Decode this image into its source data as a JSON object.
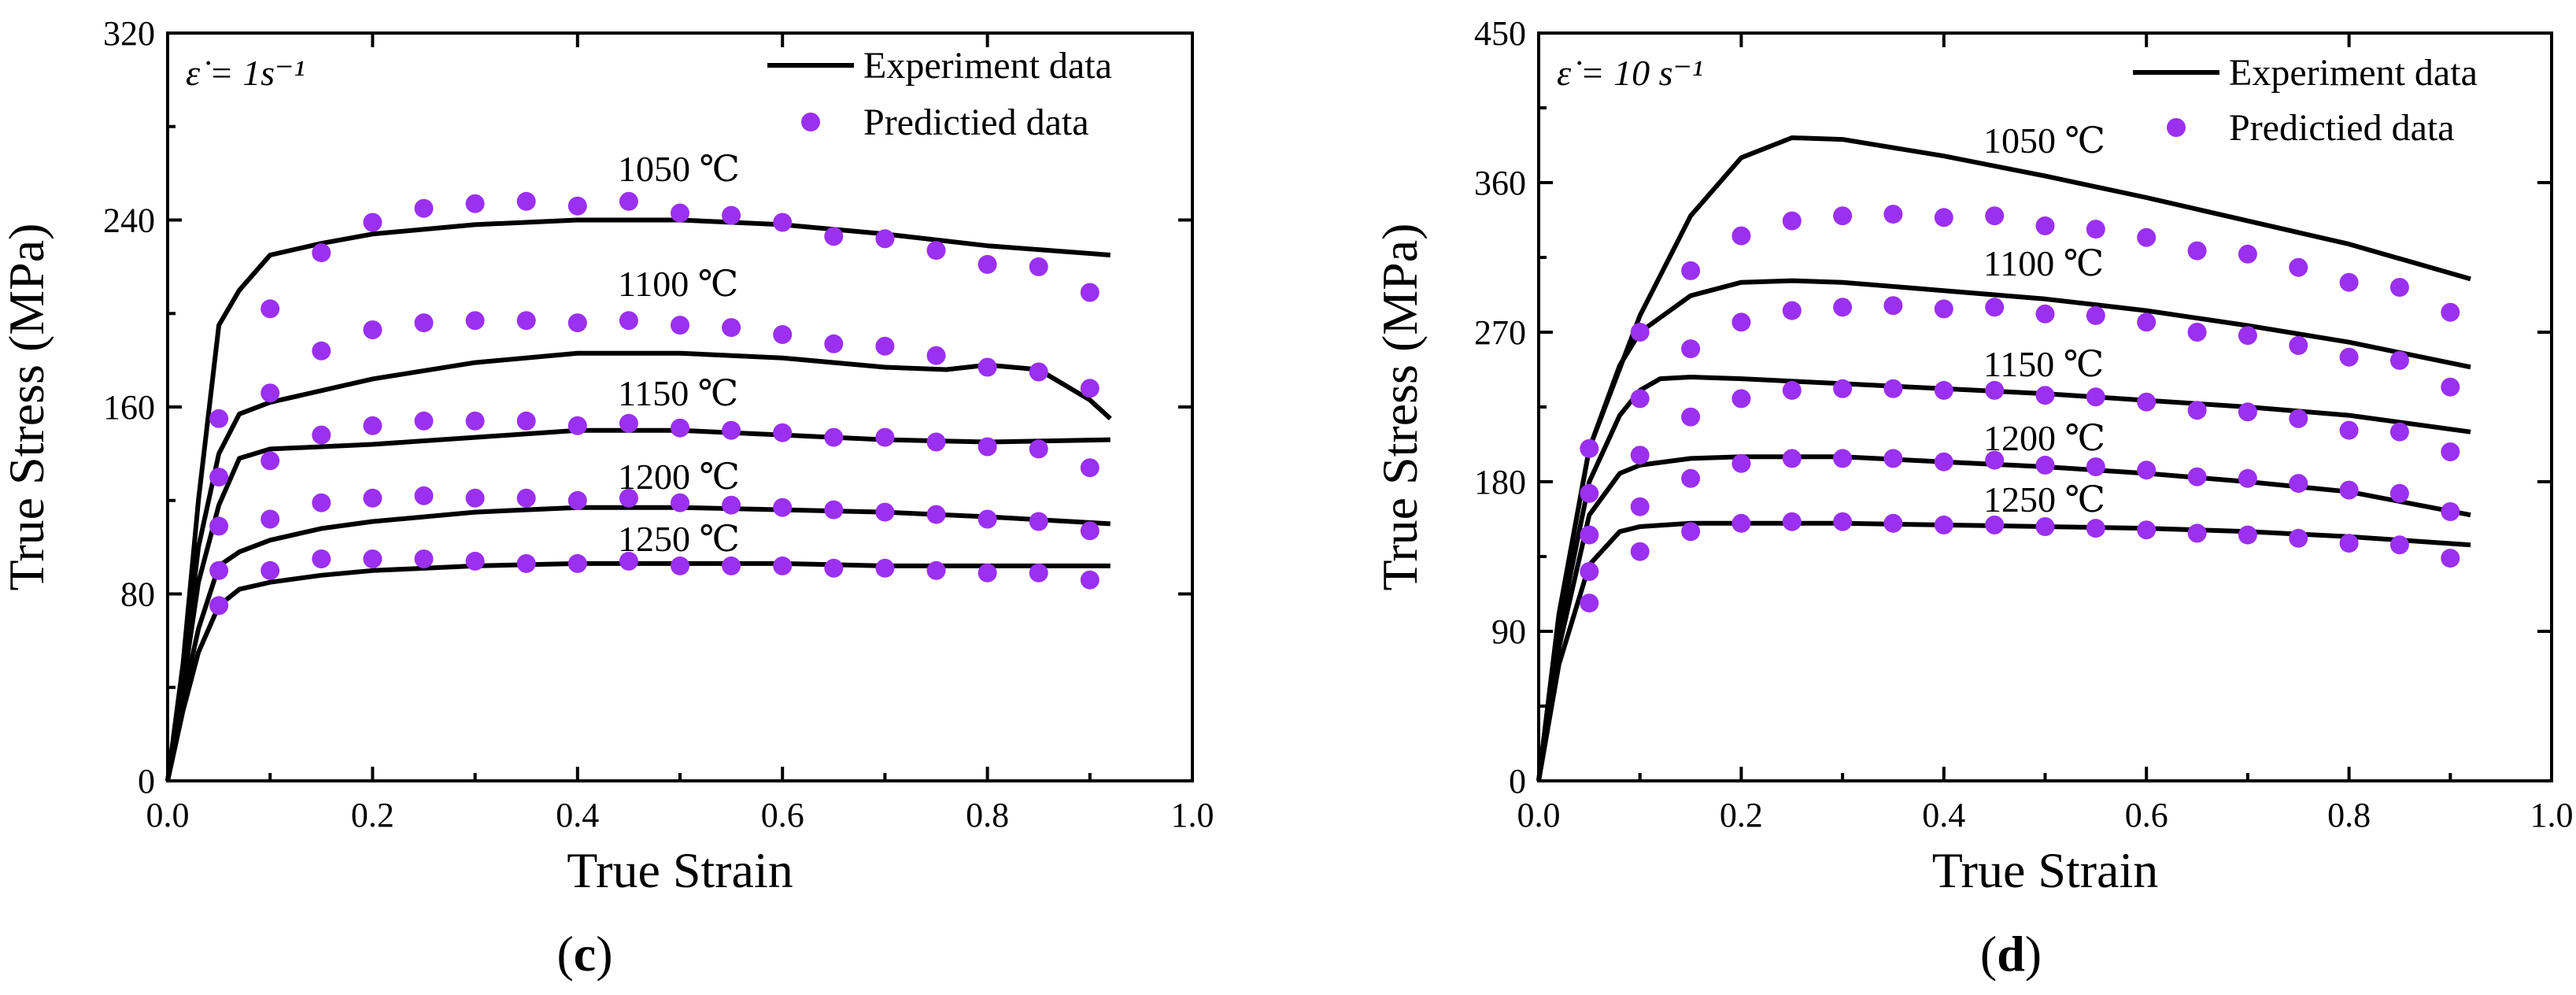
{
  "chart_data": [
    {
      "type": "line",
      "panel_label": "(c)",
      "panel_letter": "c",
      "rate_label": "ε̇ = 1s⁻¹",
      "xlabel": "True Strain",
      "ylabel": "True Stress (MPa)",
      "xlim": [
        0,
        1.0
      ],
      "ylim": [
        0,
        320
      ],
      "xticks": [
        "0.0",
        "0.2",
        "0.4",
        "0.6",
        "0.8",
        "1.0"
      ],
      "yticks": [
        "0",
        "80",
        "160",
        "240",
        "320"
      ],
      "legend": {
        "position": "top-right",
        "line_label": "Experiment data",
        "marker_label": "Predictied data"
      },
      "colors": {
        "experiment": "#000000",
        "predicted": "#9b30f0"
      },
      "series": [
        {
          "name": "1050 ℃",
          "experiment": {
            "x": [
              0,
              0.015,
              0.03,
              0.05,
              0.07,
              0.1,
              0.15,
              0.2,
              0.3,
              0.4,
              0.5,
              0.6,
              0.7,
              0.8,
              0.92
            ],
            "y": [
              0,
              50,
              120,
              195,
              210,
              225,
              230,
              234,
              238,
              240,
              240,
              238,
              234,
              229,
              225
            ]
          },
          "predicted": {
            "x": [
              0.05,
              0.1,
              0.15,
              0.2,
              0.25,
              0.3,
              0.35,
              0.4,
              0.45,
              0.5,
              0.55,
              0.6,
              0.65,
              0.7,
              0.75,
              0.8,
              0.85,
              0.9
            ],
            "y": [
              155,
              202,
              226,
              239,
              245,
              247,
              248,
              246,
              248,
              243,
              242,
              239,
              233,
              232,
              227,
              221,
              220,
              209
            ]
          }
        },
        {
          "name": "1100 ℃",
          "experiment": {
            "x": [
              0,
              0.015,
              0.03,
              0.05,
              0.07,
              0.1,
              0.2,
              0.3,
              0.4,
              0.5,
              0.6,
              0.7,
              0.76,
              0.8,
              0.85,
              0.9,
              0.92
            ],
            "y": [
              0,
              45,
              100,
              140,
              157,
              162,
              172,
              179,
              183,
              183,
              181,
              177,
              176,
              178,
              176,
              163,
              155
            ]
          },
          "predicted": {
            "x": [
              0.05,
              0.1,
              0.15,
              0.2,
              0.25,
              0.3,
              0.35,
              0.4,
              0.45,
              0.5,
              0.55,
              0.6,
              0.65,
              0.7,
              0.75,
              0.8,
              0.85,
              0.9
            ],
            "y": [
              130,
              166,
              184,
              193,
              196,
              197,
              197,
              196,
              197,
              195,
              194,
              191,
              187,
              186,
              182,
              177,
              175,
              168
            ]
          }
        },
        {
          "name": "1150 ℃",
          "experiment": {
            "x": [
              0,
              0.015,
              0.03,
              0.05,
              0.07,
              0.1,
              0.15,
              0.2,
              0.3,
              0.4,
              0.5,
              0.6,
              0.7,
              0.8,
              0.92
            ],
            "y": [
              0,
              40,
              85,
              118,
              138,
              142,
              143,
              144,
              147,
              150,
              150,
              148,
              146,
              145,
              146
            ]
          },
          "predicted": {
            "x": [
              0.05,
              0.1,
              0.15,
              0.2,
              0.25,
              0.3,
              0.35,
              0.4,
              0.45,
              0.5,
              0.55,
              0.6,
              0.65,
              0.7,
              0.75,
              0.8,
              0.85,
              0.9
            ],
            "y": [
              109,
              137,
              148,
              152,
              154,
              154,
              154,
              152,
              153,
              151,
              150,
              149,
              147,
              147,
              145,
              143,
              142,
              134
            ]
          }
        },
        {
          "name": "1200 ℃",
          "experiment": {
            "x": [
              0,
              0.015,
              0.03,
              0.05,
              0.07,
              0.1,
              0.15,
              0.2,
              0.3,
              0.4,
              0.5,
              0.6,
              0.7,
              0.8,
              0.92
            ],
            "y": [
              0,
              35,
              65,
              92,
              98,
              103,
              108,
              111,
              115,
              117,
              117,
              116,
              115,
              113,
              110
            ]
          },
          "predicted": {
            "x": [
              0.05,
              0.1,
              0.15,
              0.2,
              0.25,
              0.3,
              0.35,
              0.4,
              0.45,
              0.5,
              0.55,
              0.6,
              0.65,
              0.7,
              0.75,
              0.8,
              0.85,
              0.9
            ],
            "y": [
              90,
              112,
              119,
              121,
              122,
              121,
              121,
              120,
              121,
              119,
              118,
              117,
              116,
              115,
              114,
              112,
              111,
              107
            ]
          }
        },
        {
          "name": "1250 ℃",
          "experiment": {
            "x": [
              0,
              0.015,
              0.03,
              0.05,
              0.07,
              0.1,
              0.15,
              0.2,
              0.3,
              0.4,
              0.5,
              0.6,
              0.7,
              0.8,
              0.92
            ],
            "y": [
              0,
              30,
              55,
              75,
              82,
              85,
              88,
              90,
              92,
              93,
              93,
              93,
              92,
              92,
              92
            ]
          },
          "predicted": {
            "x": [
              0.05,
              0.1,
              0.15,
              0.2,
              0.25,
              0.3,
              0.35,
              0.4,
              0.45,
              0.5,
              0.55,
              0.6,
              0.65,
              0.7,
              0.75,
              0.8,
              0.85,
              0.9
            ],
            "y": [
              75,
              90,
              95,
              95,
              95,
              94,
              93,
              93,
              94,
              92,
              92,
              92,
              91,
              91,
              90,
              89,
              89,
              86
            ]
          }
        }
      ]
    },
    {
      "type": "line",
      "panel_label": "(d)",
      "panel_letter": "d",
      "rate_label": "ε̇ = 10 s⁻¹",
      "xlabel": "True Strain",
      "ylabel": "True Stress (MPa)",
      "xlim": [
        0,
        1.0
      ],
      "ylim": [
        0,
        450
      ],
      "xticks": [
        "0.0",
        "0.2",
        "0.4",
        "0.6",
        "0.8",
        "1.0"
      ],
      "yticks": [
        "0",
        "90",
        "180",
        "270",
        "360",
        "450"
      ],
      "legend": {
        "position": "top-right",
        "line_label": "Experiment data",
        "marker_label": "Predictied data"
      },
      "colors": {
        "experiment": "#000000",
        "predicted": "#9b30f0"
      },
      "series": [
        {
          "name": "1050 ℃",
          "experiment": {
            "x": [
              0,
              0.02,
              0.05,
              0.1,
              0.15,
              0.2,
              0.25,
              0.3,
              0.4,
              0.5,
              0.6,
              0.7,
              0.8,
              0.92
            ],
            "y": [
              0,
              100,
              200,
              280,
              340,
              375,
              387,
              386,
              376,
              364,
              351,
              337,
              323,
              302
            ]
          },
          "predicted": {
            "x": [
              0.05,
              0.1,
              0.15,
              0.2,
              0.25,
              0.3,
              0.35,
              0.4,
              0.45,
              0.5,
              0.55,
              0.6,
              0.65,
              0.7,
              0.75,
              0.8,
              0.85,
              0.9
            ],
            "y": [
              200,
              270,
              307,
              328,
              337,
              340,
              341,
              339,
              340,
              334,
              332,
              327,
              319,
              317,
              309,
              300,
              297,
              282
            ]
          }
        },
        {
          "name": "1100 ℃",
          "experiment": {
            "x": [
              0,
              0.02,
              0.05,
              0.08,
              0.1,
              0.15,
              0.2,
              0.25,
              0.3,
              0.4,
              0.5,
              0.6,
              0.7,
              0.8,
              0.92
            ],
            "y": [
              0,
              100,
              200,
              250,
              270,
              292,
              300,
              301,
              300,
              295,
              290,
              283,
              274,
              264,
              249
            ]
          },
          "predicted": {
            "x": [
              0.05,
              0.1,
              0.15,
              0.2,
              0.25,
              0.3,
              0.35,
              0.4,
              0.45,
              0.5,
              0.55,
              0.6,
              0.65,
              0.7,
              0.75,
              0.8,
              0.85,
              0.9
            ],
            "y": [
              173,
              230,
              260,
              276,
              283,
              285,
              286,
              284,
              285,
              281,
              280,
              276,
              270,
              268,
              262,
              255,
              253,
              237
            ]
          }
        },
        {
          "name": "1150 ℃",
          "experiment": {
            "x": [
              0,
              0.02,
              0.05,
              0.08,
              0.1,
              0.12,
              0.15,
              0.2,
              0.3,
              0.4,
              0.5,
              0.6,
              0.7,
              0.8,
              0.92
            ],
            "y": [
              0,
              90,
              180,
              220,
              235,
              242,
              243,
              242,
              239,
              236,
              233,
              229,
              225,
              220,
              210
            ]
          },
          "predicted": {
            "x": [
              0.05,
              0.1,
              0.15,
              0.2,
              0.25,
              0.3,
              0.35,
              0.4,
              0.45,
              0.5,
              0.55,
              0.6,
              0.65,
              0.7,
              0.75,
              0.8,
              0.85,
              0.9
            ],
            "y": [
              148,
              196,
              219,
              230,
              235,
              236,
              236,
              235,
              235,
              232,
              231,
              228,
              223,
              222,
              218,
              211,
              210,
              198
            ]
          }
        },
        {
          "name": "1200 ℃",
          "experiment": {
            "x": [
              0,
              0.02,
              0.05,
              0.08,
              0.1,
              0.15,
              0.2,
              0.3,
              0.4,
              0.5,
              0.6,
              0.7,
              0.8,
              0.92
            ],
            "y": [
              0,
              80,
              160,
              185,
              190,
              194,
              195,
              195,
              192,
              189,
              185,
              180,
              174,
              160
            ]
          },
          "predicted": {
            "x": [
              0.05,
              0.1,
              0.15,
              0.2,
              0.25,
              0.3,
              0.35,
              0.4,
              0.45,
              0.5,
              0.55,
              0.6,
              0.65,
              0.7,
              0.75,
              0.8,
              0.85,
              0.9
            ],
            "y": [
              126,
              165,
              182,
              191,
              194,
              194,
              194,
              192,
              193,
              190,
              189,
              187,
              183,
              182,
              179,
              175,
              173,
              162
            ]
          }
        },
        {
          "name": "1250 ℃",
          "experiment": {
            "x": [
              0,
              0.02,
              0.05,
              0.08,
              0.1,
              0.15,
              0.2,
              0.3,
              0.4,
              0.5,
              0.6,
              0.7,
              0.8,
              0.92
            ],
            "y": [
              0,
              70,
              130,
              150,
              153,
              155,
              155,
              155,
              154,
              153,
              152,
              150,
              147,
              142
            ]
          },
          "predicted": {
            "x": [
              0.05,
              0.1,
              0.15,
              0.2,
              0.25,
              0.3,
              0.35,
              0.4,
              0.45,
              0.5,
              0.55,
              0.6,
              0.65,
              0.7,
              0.75,
              0.8,
              0.85,
              0.9
            ],
            "y": [
              107,
              138,
              150,
              155,
              156,
              156,
              155,
              154,
              154,
              153,
              152,
              151,
              149,
              148,
              146,
              143,
              142,
              134
            ]
          }
        }
      ]
    }
  ]
}
